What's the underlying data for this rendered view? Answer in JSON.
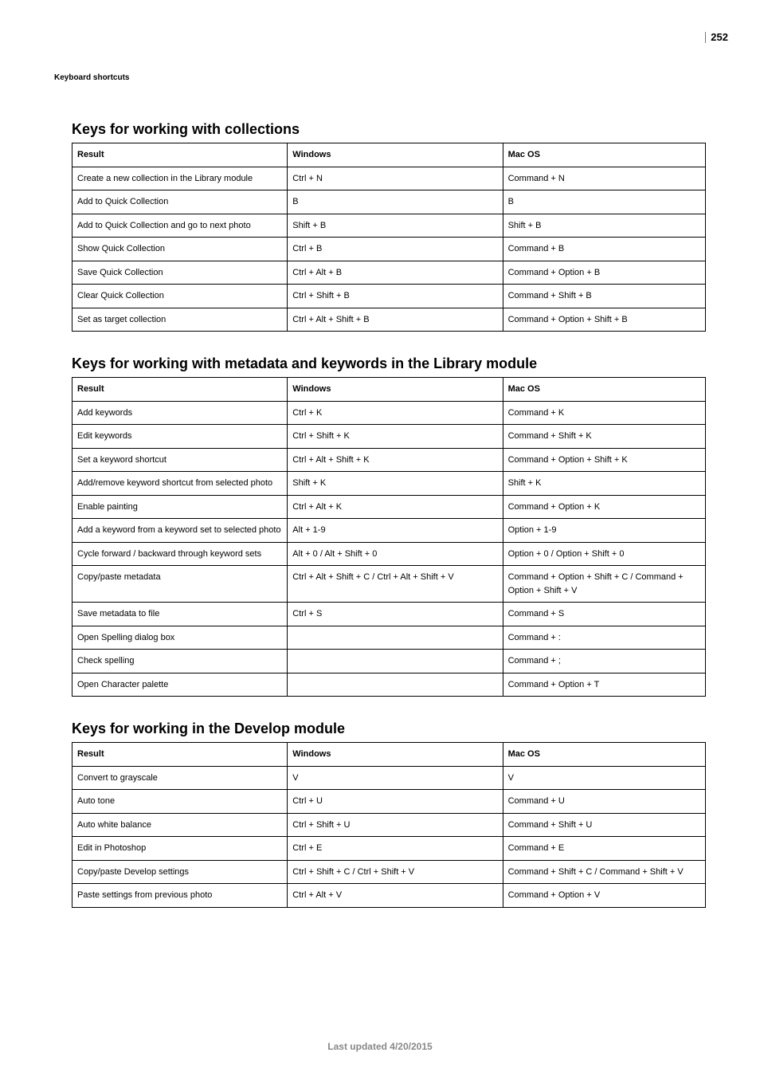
{
  "page_number": "252",
  "breadcrumb": "Keyboard shortcuts",
  "footer": "Last updated 4/20/2015",
  "columns": {
    "result": "Result",
    "windows": "Windows",
    "macos": "Mac OS"
  },
  "sections": [
    {
      "title": "Keys for working with collections",
      "rows": [
        {
          "result": "Create a new collection in the Library module",
          "windows": "Ctrl + N",
          "macos": "Command + N"
        },
        {
          "result": "Add to Quick Collection",
          "windows": "B",
          "macos": "B"
        },
        {
          "result": "Add to Quick Collection and go to next photo",
          "windows": "Shift + B",
          "macos": "Shift + B"
        },
        {
          "result": "Show Quick Collection",
          "windows": "Ctrl + B",
          "macos": "Command + B"
        },
        {
          "result": "Save Quick Collection",
          "windows": "Ctrl + Alt + B",
          "macos": "Command + Option + B"
        },
        {
          "result": "Clear Quick Collection",
          "windows": "Ctrl + Shift + B",
          "macos": "Command + Shift + B"
        },
        {
          "result": "Set as target collection",
          "windows": "Ctrl + Alt + Shift + B",
          "macos": "Command + Option + Shift + B"
        }
      ]
    },
    {
      "title": "Keys for working with metadata and keywords in the Library module",
      "rows": [
        {
          "result": "Add keywords",
          "windows": "Ctrl + K",
          "macos": "Command + K"
        },
        {
          "result": "Edit keywords",
          "windows": "Ctrl + Shift + K",
          "macos": "Command + Shift + K"
        },
        {
          "result": "Set a keyword shortcut",
          "windows": "Ctrl + Alt + Shift + K",
          "macos": "Command + Option + Shift + K"
        },
        {
          "result": "Add/remove keyword shortcut from selected photo",
          "windows": "Shift + K",
          "macos": "Shift + K"
        },
        {
          "result": "Enable painting",
          "windows": "Ctrl + Alt + K",
          "macos": "Command + Option + K"
        },
        {
          "result": "Add a keyword from a keyword set to selected photo",
          "windows": "Alt + 1-9",
          "macos": "Option + 1-9"
        },
        {
          "result": "Cycle forward / backward through keyword sets",
          "windows": "Alt + 0 / Alt + Shift + 0",
          "macos": "Option + 0 / Option + Shift + 0"
        },
        {
          "result": "Copy/paste metadata",
          "windows": "Ctrl + Alt + Shift + C / Ctrl + Alt + Shift + V",
          "macos": "Command + Option + Shift + C / Command + Option + Shift + V"
        },
        {
          "result": "Save metadata to file",
          "windows": "Ctrl + S",
          "macos": "Command + S"
        },
        {
          "result": "Open Spelling dialog box",
          "windows": "",
          "macos": "Command + :"
        },
        {
          "result": "Check spelling",
          "windows": "",
          "macos": "Command + ;"
        },
        {
          "result": "Open Character palette",
          "windows": "",
          "macos": "Command + Option + T"
        }
      ]
    },
    {
      "title": "Keys for working in the Develop module",
      "rows": [
        {
          "result": "Convert to grayscale",
          "windows": "V",
          "macos": "V"
        },
        {
          "result": "Auto tone",
          "windows": "Ctrl + U",
          "macos": "Command + U"
        },
        {
          "result": "Auto white balance",
          "windows": "Ctrl + Shift + U",
          "macos": "Command + Shift + U"
        },
        {
          "result": "Edit in Photoshop",
          "windows": "Ctrl + E",
          "macos": "Command + E"
        },
        {
          "result": "Copy/paste Develop settings",
          "windows": "Ctrl + Shift + C / Ctrl + Shift + V",
          "macos": "Command + Shift + C / Command + Shift + V"
        },
        {
          "result": "Paste settings from previous photo",
          "windows": "Ctrl + Alt + V",
          "macos": "Command + Option + V"
        }
      ]
    }
  ]
}
